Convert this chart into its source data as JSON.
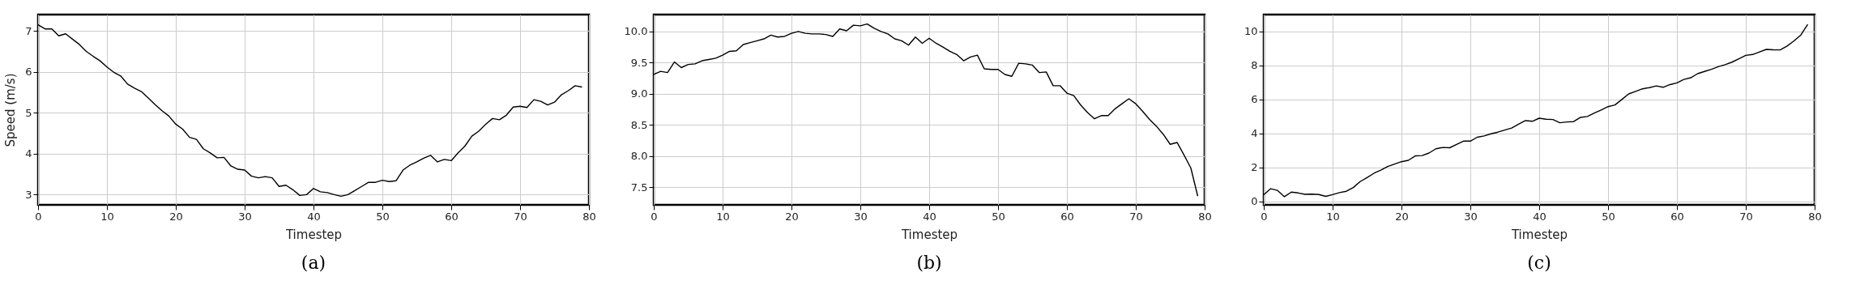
{
  "chart_data": [
    {
      "type": "line",
      "title": "(a)",
      "xlabel": "Timestep",
      "ylabel": "Speed (m/s)",
      "x": [
        0,
        1,
        2,
        3,
        4,
        5,
        6,
        7,
        8,
        9,
        10,
        11,
        12,
        13,
        14,
        15,
        16,
        17,
        18,
        19,
        20,
        21,
        22,
        23,
        24,
        25,
        26,
        27,
        28,
        29,
        30,
        31,
        32,
        33,
        34,
        35,
        36,
        37,
        38,
        39,
        40,
        41,
        42,
        43,
        44,
        45,
        46,
        47,
        48,
        49,
        50,
        51,
        52,
        53,
        54,
        55,
        56,
        57,
        58,
        59,
        60,
        61,
        62,
        63,
        64,
        65,
        66,
        67,
        68,
        69,
        70,
        71,
        72,
        73,
        74,
        75,
        76,
        77,
        78,
        79
      ],
      "series": [
        {
          "color": "#000000",
          "values": [
            7.15,
            7.05,
            7.05,
            6.88,
            6.93,
            6.8,
            6.67,
            6.5,
            6.38,
            6.27,
            6.12,
            5.99,
            5.9,
            5.7,
            5.6,
            5.52,
            5.36,
            5.2,
            5.05,
            4.92,
            4.72,
            4.6,
            4.4,
            4.35,
            4.12,
            4.02,
            3.9,
            3.91,
            3.7,
            3.62,
            3.6,
            3.45,
            3.41,
            3.44,
            3.41,
            3.2,
            3.23,
            3.12,
            2.98,
            3.0,
            3.15,
            3.07,
            3.05,
            3.0,
            2.96,
            3.0,
            3.1,
            3.2,
            3.3,
            3.3,
            3.35,
            3.32,
            3.34,
            3.6,
            3.72,
            3.8,
            3.89,
            3.96,
            3.8,
            3.86,
            3.83,
            4.02,
            4.19,
            4.43,
            4.55,
            4.72,
            4.86,
            4.83,
            4.94,
            5.14,
            5.16,
            5.13,
            5.32,
            5.28,
            5.19,
            5.26,
            5.44,
            5.54,
            5.66,
            5.63
          ]
        }
      ],
      "xlim": [
        0,
        80
      ],
      "xticks": [
        0,
        10,
        20,
        30,
        40,
        50,
        60,
        70,
        80
      ],
      "ylim": [
        2.75,
        7.4
      ],
      "yticks": [
        3,
        4,
        5,
        6,
        7
      ],
      "grid": true,
      "line_style": "solid"
    },
    {
      "type": "line",
      "title": "(b)",
      "xlabel": "Timestep",
      "x": [
        0,
        1,
        2,
        3,
        4,
        5,
        6,
        7,
        8,
        9,
        10,
        11,
        12,
        13,
        14,
        15,
        16,
        17,
        18,
        19,
        20,
        21,
        22,
        23,
        24,
        25,
        26,
        27,
        28,
        29,
        30,
        31,
        32,
        33,
        34,
        35,
        36,
        37,
        38,
        39,
        40,
        41,
        42,
        43,
        44,
        45,
        46,
        47,
        48,
        49,
        50,
        51,
        52,
        53,
        54,
        55,
        56,
        57,
        58,
        59,
        60,
        61,
        62,
        63,
        64,
        65,
        66,
        67,
        68,
        69,
        70,
        71,
        72,
        73,
        74,
        75,
        76,
        77,
        78,
        79
      ],
      "series": [
        {
          "color": "#000000",
          "values": [
            9.31,
            9.36,
            9.34,
            9.51,
            9.42,
            9.47,
            9.48,
            9.53,
            9.55,
            9.57,
            9.62,
            9.68,
            9.69,
            9.79,
            9.82,
            9.85,
            9.88,
            9.94,
            9.91,
            9.92,
            9.97,
            10.0,
            9.97,
            9.96,
            9.96,
            9.95,
            9.92,
            10.04,
            10.01,
            10.1,
            10.09,
            10.12,
            10.05,
            10.0,
            9.96,
            9.88,
            9.85,
            9.78,
            9.91,
            9.81,
            9.89,
            9.81,
            9.75,
            9.68,
            9.63,
            9.53,
            9.59,
            9.62,
            9.4,
            9.39,
            9.39,
            9.31,
            9.28,
            9.49,
            9.48,
            9.46,
            9.34,
            9.35,
            9.13,
            9.13,
            9.01,
            8.97,
            8.82,
            8.7,
            8.6,
            8.65,
            8.65,
            8.76,
            8.84,
            8.92,
            8.84,
            8.72,
            8.59,
            8.48,
            8.35,
            8.19,
            8.22,
            8.02,
            7.81,
            7.36
          ]
        }
      ],
      "xlim": [
        0,
        80
      ],
      "xticks": [
        0,
        10,
        20,
        30,
        40,
        50,
        60,
        70,
        80
      ],
      "ylim": [
        7.22,
        10.27
      ],
      "yticks": [
        7.5,
        {
          "value": 8,
          "label": "8.0"
        },
        8.5,
        {
          "value": 9,
          "label": "9.0"
        },
        9.5,
        {
          "value": 10,
          "label": "10.0"
        }
      ],
      "grid": true,
      "line_style": "solid"
    },
    {
      "type": "line",
      "title": "(c)",
      "xlabel": "Timestep",
      "x": [
        0,
        1,
        2,
        3,
        4,
        5,
        6,
        7,
        8,
        9,
        10,
        11,
        12,
        13,
        14,
        15,
        16,
        17,
        18,
        19,
        20,
        21,
        22,
        23,
        24,
        25,
        26,
        27,
        28,
        29,
        30,
        31,
        32,
        33,
        34,
        35,
        36,
        37,
        38,
        39,
        40,
        41,
        42,
        43,
        44,
        45,
        46,
        47,
        48,
        49,
        50,
        51,
        52,
        53,
        54,
        55,
        56,
        57,
        58,
        59,
        60,
        61,
        62,
        63,
        64,
        65,
        66,
        67,
        68,
        69,
        70,
        71,
        72,
        73,
        74,
        75,
        76,
        77,
        78,
        79
      ],
      "series": [
        {
          "color": "#000000",
          "values": [
            0.4,
            0.75,
            0.65,
            0.28,
            0.55,
            0.5,
            0.42,
            0.43,
            0.41,
            0.3,
            0.4,
            0.52,
            0.6,
            0.82,
            1.17,
            1.4,
            1.66,
            1.84,
            2.06,
            2.2,
            2.34,
            2.42,
            2.68,
            2.7,
            2.85,
            3.1,
            3.18,
            3.16,
            3.36,
            3.55,
            3.55,
            3.78,
            3.86,
            3.98,
            4.08,
            4.2,
            4.32,
            4.55,
            4.76,
            4.72,
            4.9,
            4.84,
            4.82,
            4.63,
            4.68,
            4.7,
            4.95,
            5.0,
            5.2,
            5.38,
            5.58,
            5.68,
            6.0,
            6.33,
            6.48,
            6.63,
            6.7,
            6.8,
            6.72,
            6.88,
            6.98,
            7.18,
            7.28,
            7.52,
            7.65,
            7.78,
            7.93,
            8.05,
            8.2,
            8.4,
            8.6,
            8.65,
            8.8,
            8.95,
            8.93,
            8.92,
            9.15,
            9.45,
            9.8,
            10.42
          ]
        }
      ],
      "xlim": [
        0,
        80
      ],
      "xticks": [
        0,
        10,
        20,
        30,
        40,
        50,
        60,
        70,
        80
      ],
      "ylim": [
        -0.2,
        11
      ],
      "yticks": [
        0,
        2,
        4,
        6,
        8,
        10
      ],
      "grid": true,
      "line_style": "solid"
    }
  ]
}
